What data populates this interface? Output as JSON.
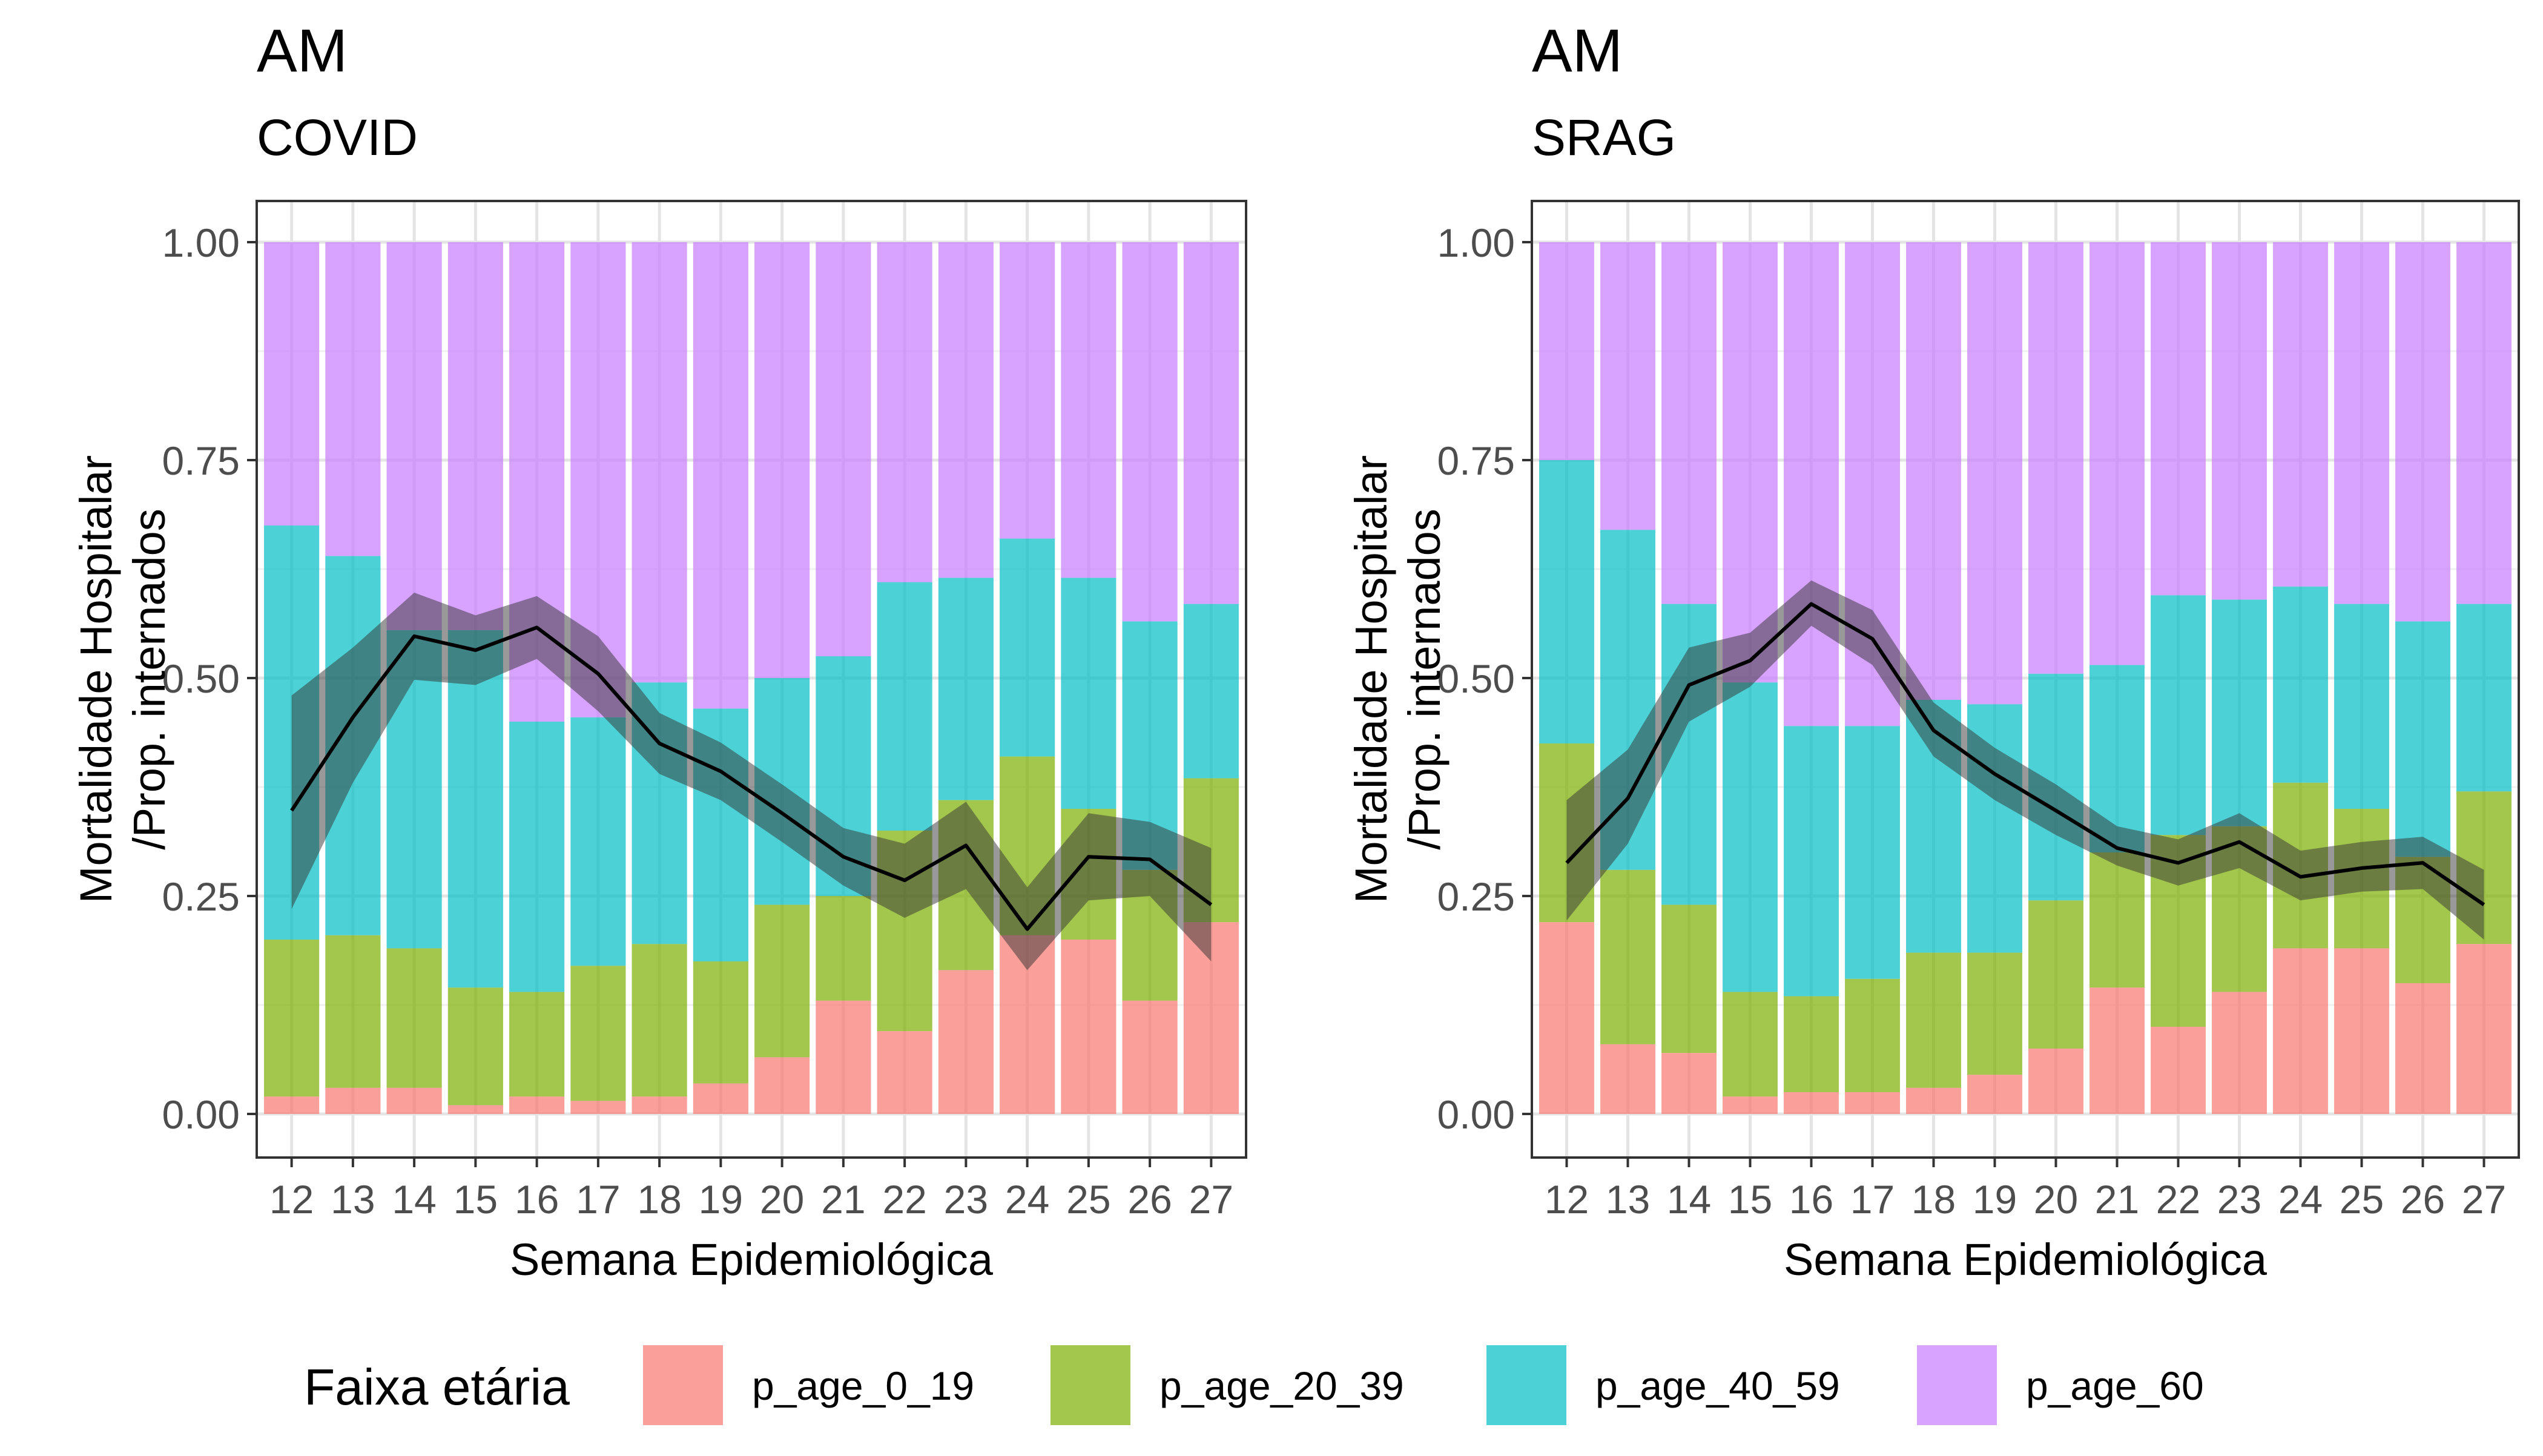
{
  "legend": {
    "title": "Faixa etária",
    "items": [
      {
        "label": "p_age_0_19",
        "color": "#F8766D"
      },
      {
        "label": "p_age_20_39",
        "color": "#7CAE00"
      },
      {
        "label": "p_age_40_59",
        "color": "#00BFC4"
      },
      {
        "label": "p_age_60",
        "color": "#C77CFF"
      }
    ]
  },
  "chart_data": [
    {
      "type": "bar",
      "stacked": true,
      "title": "AM",
      "subtitle": "COVID",
      "xlabel": "Semana Epidemiológica",
      "ylabel": "Mortalidade Hospitalar\n/Prop. internados",
      "ylim": [
        0,
        1
      ],
      "yticks": [
        "0.00",
        "0.25",
        "0.50",
        "0.75",
        "1.00"
      ],
      "categories": [
        "12",
        "13",
        "14",
        "15",
        "16",
        "17",
        "18",
        "19",
        "20",
        "21",
        "22",
        "23",
        "24",
        "25",
        "26",
        "27"
      ],
      "grid": true,
      "series": [
        {
          "name": "p_age_0_19",
          "values": [
            0.02,
            0.03,
            0.03,
            0.01,
            0.02,
            0.015,
            0.02,
            0.035,
            0.065,
            0.13,
            0.095,
            0.165,
            0.205,
            0.2,
            0.13,
            0.22
          ]
        },
        {
          "name": "p_age_20_39",
          "values": [
            0.18,
            0.175,
            0.16,
            0.135,
            0.12,
            0.155,
            0.175,
            0.14,
            0.175,
            0.12,
            0.23,
            0.195,
            0.205,
            0.15,
            0.15,
            0.165
          ]
        },
        {
          "name": "p_age_40_59",
          "values": [
            0.475,
            0.435,
            0.365,
            0.41,
            0.31,
            0.285,
            0.3,
            0.29,
            0.26,
            0.275,
            0.285,
            0.255,
            0.25,
            0.265,
            0.285,
            0.2
          ]
        },
        {
          "name": "p_age_60",
          "values": [
            0.325,
            0.36,
            0.445,
            0.445,
            0.55,
            0.545,
            0.505,
            0.535,
            0.5,
            0.475,
            0.39,
            0.385,
            0.34,
            0.385,
            0.435,
            0.415
          ]
        }
      ],
      "line": {
        "values": [
          0.348,
          0.455,
          0.548,
          0.532,
          0.558,
          0.505,
          0.425,
          0.393,
          0.345,
          0.295,
          0.268,
          0.308,
          0.212,
          0.295,
          0.292,
          0.24
        ],
        "lower": [
          0.235,
          0.38,
          0.498,
          0.492,
          0.522,
          0.462,
          0.39,
          0.36,
          0.312,
          0.262,
          0.225,
          0.258,
          0.165,
          0.245,
          0.25,
          0.175
        ],
        "upper": [
          0.48,
          0.535,
          0.598,
          0.572,
          0.594,
          0.548,
          0.46,
          0.426,
          0.378,
          0.328,
          0.31,
          0.358,
          0.26,
          0.345,
          0.335,
          0.305
        ]
      }
    },
    {
      "type": "bar",
      "stacked": true,
      "title": "AM",
      "subtitle": "SRAG",
      "xlabel": "Semana Epidemiológica",
      "ylabel": "Mortalidade Hospitalar\n/Prop. internados",
      "ylim": [
        0,
        1
      ],
      "yticks": [
        "0.00",
        "0.25",
        "0.50",
        "0.75",
        "1.00"
      ],
      "categories": [
        "12",
        "13",
        "14",
        "15",
        "16",
        "17",
        "18",
        "19",
        "20",
        "21",
        "22",
        "23",
        "24",
        "25",
        "26",
        "27"
      ],
      "grid": true,
      "series": [
        {
          "name": "p_age_0_19",
          "values": [
            0.22,
            0.08,
            0.07,
            0.02,
            0.025,
            0.025,
            0.03,
            0.045,
            0.075,
            0.145,
            0.1,
            0.14,
            0.19,
            0.19,
            0.15,
            0.195
          ]
        },
        {
          "name": "p_age_20_39",
          "values": [
            0.205,
            0.2,
            0.17,
            0.12,
            0.11,
            0.13,
            0.155,
            0.14,
            0.17,
            0.155,
            0.22,
            0.19,
            0.19,
            0.16,
            0.145,
            0.175
          ]
        },
        {
          "name": "p_age_40_59",
          "values": [
            0.325,
            0.39,
            0.345,
            0.355,
            0.31,
            0.29,
            0.29,
            0.285,
            0.26,
            0.215,
            0.275,
            0.26,
            0.225,
            0.235,
            0.27,
            0.215
          ]
        },
        {
          "name": "p_age_60",
          "values": [
            0.25,
            0.33,
            0.415,
            0.505,
            0.555,
            0.555,
            0.525,
            0.53,
            0.495,
            0.485,
            0.405,
            0.41,
            0.395,
            0.415,
            0.435,
            0.415
          ]
        }
      ],
      "line": {
        "values": [
          0.288,
          0.362,
          0.492,
          0.52,
          0.585,
          0.545,
          0.44,
          0.39,
          0.348,
          0.305,
          0.288,
          0.312,
          0.272,
          0.282,
          0.288,
          0.24
        ],
        "lower": [
          0.222,
          0.31,
          0.45,
          0.49,
          0.56,
          0.515,
          0.41,
          0.36,
          0.32,
          0.285,
          0.262,
          0.282,
          0.245,
          0.255,
          0.258,
          0.2
        ],
        "upper": [
          0.36,
          0.418,
          0.535,
          0.552,
          0.612,
          0.578,
          0.472,
          0.42,
          0.378,
          0.33,
          0.315,
          0.345,
          0.302,
          0.312,
          0.318,
          0.28
        ]
      }
    }
  ]
}
